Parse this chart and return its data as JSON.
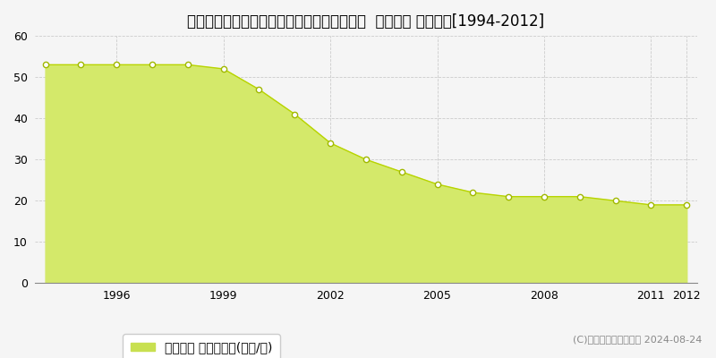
{
  "title": "兵庫県神戸市北区ひよどり台２丁目１０番７  地価公示 地価推移[1994-2012]",
  "years": [
    1994,
    1995,
    1996,
    1997,
    1998,
    1999,
    2000,
    2001,
    2002,
    2003,
    2004,
    2005,
    2006,
    2007,
    2008,
    2009,
    2010,
    2011,
    2012
  ],
  "values": [
    53,
    53,
    53,
    53,
    53,
    52,
    47,
    41,
    34,
    30,
    27,
    24,
    22,
    21,
    21,
    21,
    20,
    19,
    19
  ],
  "fill_color": "#d4e96a",
  "line_color": "#b8d400",
  "marker_color": "#ffffff",
  "marker_edge_color": "#a0b800",
  "background_color": "#f5f5f5",
  "plot_bg_color": "#f5f5f5",
  "grid_color": "#cccccc",
  "ylim": [
    0,
    60
  ],
  "yticks": [
    0,
    10,
    20,
    30,
    40,
    50,
    60
  ],
  "xtick_years": [
    1996,
    1999,
    2002,
    2005,
    2008,
    2011,
    2012
  ],
  "legend_label": "地価公示 平均坪単価(万円/坪)",
  "legend_marker_color": "#c8e050",
  "copyright_text": "(C)土地価格ドットコム 2024-08-24",
  "title_fontsize": 12,
  "tick_fontsize": 9,
  "legend_fontsize": 9,
  "copyright_fontsize": 8
}
